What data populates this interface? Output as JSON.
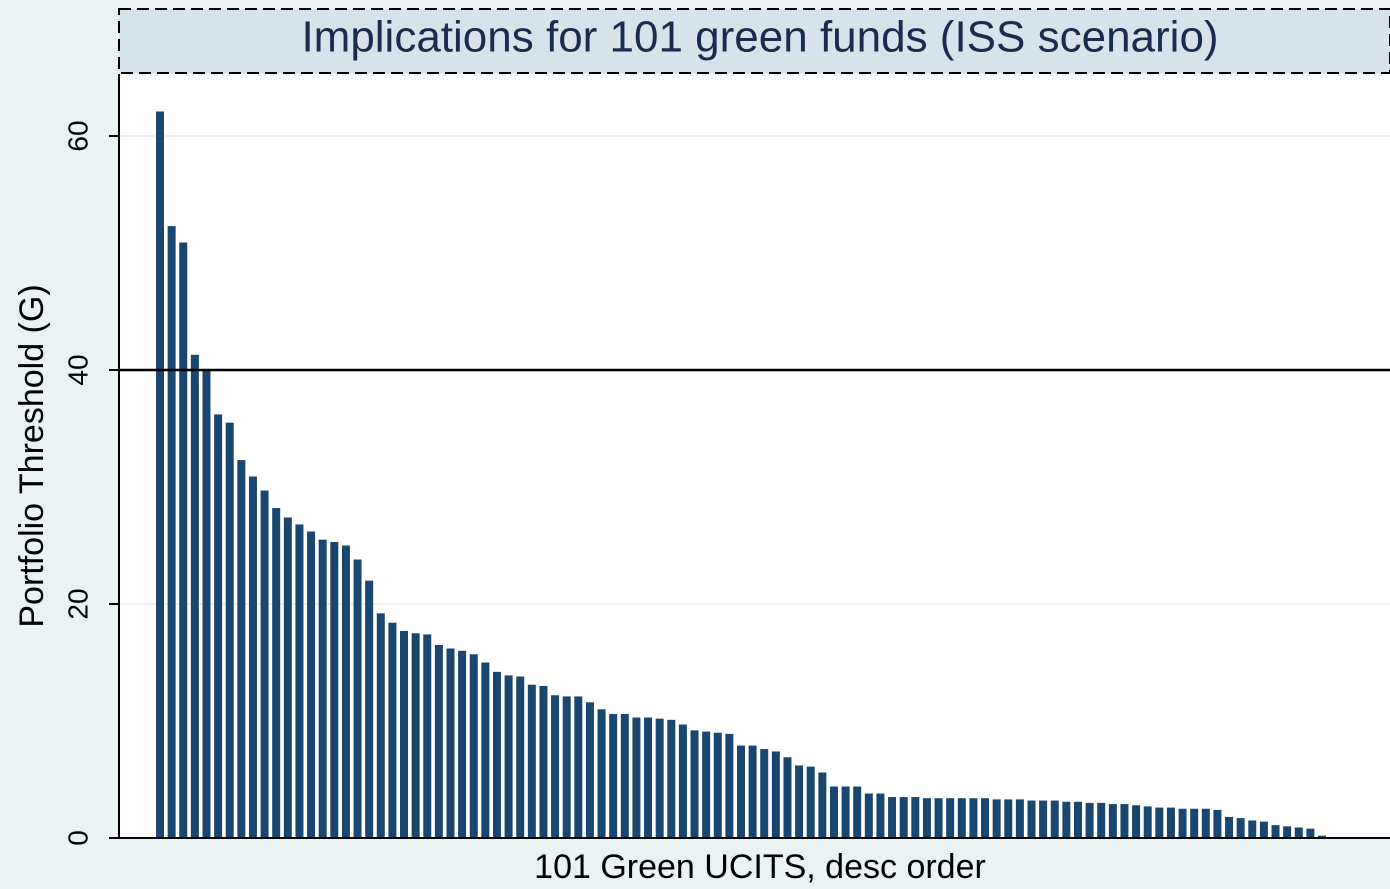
{
  "chart_data": {
    "type": "bar",
    "title": "Implications for 101 green funds (ISS scenario)",
    "x_label": "101 Green UCITS, desc order",
    "y_label": "Portfolio Threshold (G)",
    "categories": [
      null,
      null,
      null,
      null,
      null,
      null,
      null,
      null,
      null,
      null,
      null,
      null,
      null,
      null,
      null,
      null,
      null,
      null,
      null,
      null,
      null,
      null,
      null,
      null,
      null,
      null,
      null,
      null,
      null,
      null,
      null,
      null,
      null,
      null,
      null,
      null,
      null,
      null,
      null,
      null,
      null,
      null,
      null,
      null,
      null,
      null,
      null,
      null,
      null,
      null,
      null,
      null,
      null,
      null,
      null,
      null,
      null,
      null,
      null,
      null,
      null,
      null,
      null,
      null,
      null,
      null,
      null,
      null,
      null,
      null,
      null,
      null,
      null,
      null,
      null,
      null,
      null,
      null,
      null,
      null,
      null,
      null,
      null,
      null,
      null,
      null,
      null,
      null,
      null,
      null,
      null,
      null,
      null,
      null,
      null,
      null,
      null,
      null,
      null,
      null,
      null
    ],
    "values": [
      62.1,
      52.3,
      50.9,
      41.3,
      40.0,
      36.2,
      35.5,
      32.3,
      30.9,
      29.7,
      28.2,
      27.4,
      26.8,
      26.2,
      25.5,
      25.3,
      25.0,
      23.8,
      22.0,
      19.2,
      18.4,
      17.7,
      17.5,
      17.4,
      16.5,
      16.2,
      16.0,
      15.7,
      15.0,
      14.2,
      13.9,
      13.8,
      13.1,
      13.0,
      12.2,
      12.1,
      12.1,
      11.6,
      11.0,
      10.6,
      10.6,
      10.3,
      10.3,
      10.2,
      10.1,
      9.7,
      9.2,
      9.1,
      9.0,
      8.9,
      7.9,
      7.9,
      7.6,
      7.4,
      6.9,
      6.2,
      6.1,
      5.6,
      4.4,
      4.4,
      4.4,
      3.8,
      3.8,
      3.5,
      3.5,
      3.5,
      3.4,
      3.4,
      3.4,
      3.4,
      3.4,
      3.4,
      3.3,
      3.3,
      3.3,
      3.2,
      3.2,
      3.2,
      3.1,
      3.1,
      3.0,
      3.0,
      2.9,
      2.9,
      2.8,
      2.7,
      2.6,
      2.6,
      2.5,
      2.5,
      2.5,
      2.4,
      1.8,
      1.7,
      1.5,
      1.4,
      1.1,
      1.0,
      0.9,
      0.8,
      0.2
    ],
    "color": "#1a476f",
    "ylim": [
      0,
      65.3
    ],
    "yticks": [
      0,
      20,
      40,
      60
    ],
    "grid": true,
    "reference_line": 40
  }
}
